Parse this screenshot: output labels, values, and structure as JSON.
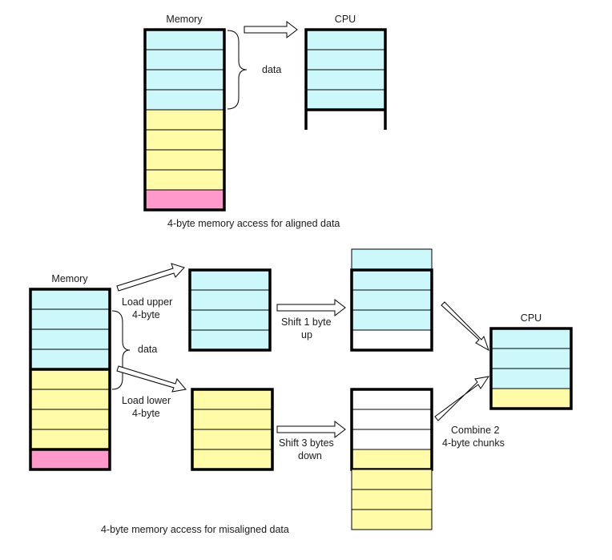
{
  "colors": {
    "cyan": "#ccf7fb",
    "yellow": "#fffba6",
    "pink": "#ff99cc",
    "white": "#ffffff"
  },
  "aligned": {
    "memory_label": "Memory",
    "cpu_label": "CPU",
    "data_label": "data",
    "caption": "4-byte memory access for aligned data"
  },
  "misaligned": {
    "memory_label": "Memory",
    "load_upper_line1": "Load upper",
    "load_upper_line2": "4-byte",
    "data_label": "data",
    "load_lower_line1": "Load lower",
    "load_lower_line2": "4-byte",
    "shift_up_line1": "Shift 1 byte",
    "shift_up_line2": "up",
    "shift_down_line1": "Shift 3 bytes",
    "shift_down_line2": "down",
    "combine_line1": "Combine 2",
    "combine_line2": "4-byte chunks",
    "cpu_label": "CPU",
    "caption": "4-byte memory access for misaligned data"
  }
}
